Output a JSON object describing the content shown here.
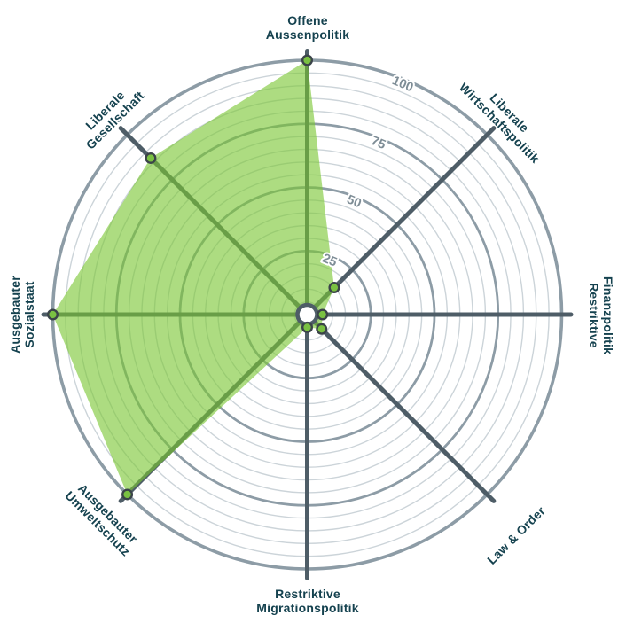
{
  "chart_data": {
    "type": "radar",
    "description": "smartspider political profile chart, 8 axes, scale 0-100",
    "axes": [
      {
        "id": "offene-aussenpolitik",
        "lines": [
          "Offene",
          "Aussenpolitik"
        ],
        "value": 100,
        "angle_deg": -90
      },
      {
        "id": "liberale-wirtschaftspolitik",
        "lines": [
          "Liberale",
          "Wirtschaftspolitik"
        ],
        "value": 15,
        "angle_deg": -45
      },
      {
        "id": "restriktive-finanzpolitik",
        "lines": [
          "Restriktive",
          "Finanzpolitik"
        ],
        "value": 6,
        "angle_deg": 0
      },
      {
        "id": "law-und-order",
        "lines": [
          "Law & Order"
        ],
        "value": 8,
        "angle_deg": 45
      },
      {
        "id": "restriktive-migrationspolitik",
        "lines": [
          "Restriktive",
          "Migrationspolitik"
        ],
        "value": 5,
        "angle_deg": 90
      },
      {
        "id": "ausgebauter-umweltschutz",
        "lines": [
          "Ausgebauter",
          "Umweltschutz"
        ],
        "value": 100,
        "angle_deg": 135
      },
      {
        "id": "ausgebauter-sozialstaat",
        "lines": [
          "Ausgebauter",
          "Sozialstaat"
        ],
        "value": 100,
        "angle_deg": 180
      },
      {
        "id": "liberale-gesellschaft",
        "lines": [
          "Liberale",
          "Gesellschaft"
        ],
        "value": 87,
        "angle_deg": -135
      }
    ],
    "series": [
      {
        "name": "profile",
        "values": [
          100,
          15,
          6,
          8,
          5,
          100,
          100,
          87
        ]
      }
    ],
    "scale": {
      "min": 0,
      "max": 100,
      "minor_step": 5,
      "major_step": 25,
      "tick_labels": [
        "25",
        "50",
        "75",
        "100"
      ]
    },
    "legend": null,
    "grid": "concentric-circles",
    "colors": {
      "fill_green": "#7ac734",
      "fill_opacity": 0.62,
      "dot_green": "#7ac142",
      "dot_outline": "#3b4449",
      "spoke_gray": "#4e5d67",
      "ring_major": "#8d9ca6",
      "ring_minor": "#ccd4d9",
      "label_teal": "#15424f",
      "tick_gray": "#7e8d96",
      "background": "#ffffff"
    }
  }
}
